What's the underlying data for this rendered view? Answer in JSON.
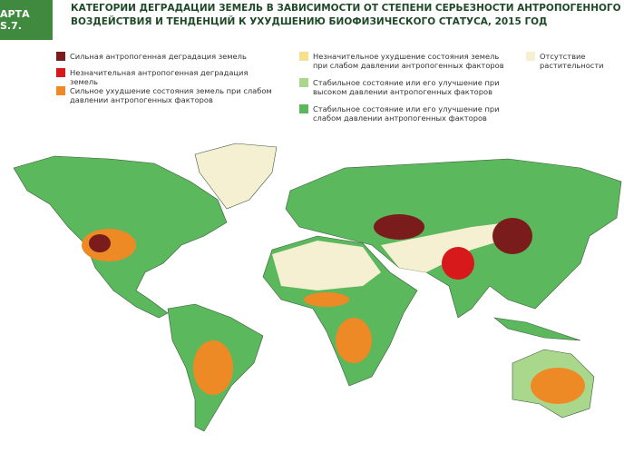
{
  "header": {
    "label": "АРТА S.7.",
    "title_lines": [
      "КАТЕГОРИИ ДЕГРАДАЦИИ ЗЕМЕЛЬ В ЗАВИСИМОСТИ ОТ СТЕПЕНИ СЕРЬЕЗНОСТИ АНТРОПОГЕННОГО",
      "ВОЗДЕЙСТВИЯ И ТЕНДЕНЦИЙ К УХУДШЕНИЮ БИОФИЗИЧЕСКОГО СТАТУСА, 2015 ГОД"
    ]
  },
  "legend": [
    {
      "label": "Сильная антропогенная деградация земель",
      "color": "#7a1c1c"
    },
    {
      "label": "Незначительная антропогенная деградация земель",
      "color": "#d7191c"
    },
    {
      "label": "Сильное ухудшение состояния земель при слабом давлении антропогенных факторов",
      "color": "#ee8a25"
    },
    {
      "label": "Незначительное ухудшение состояния земель при слабом давлении антропогенных факторов",
      "color": "#f6e08e"
    },
    {
      "label": "Стабильное состояние или его улучшение при высоком давлении антропогенных факторов",
      "color": "#a9d88c"
    },
    {
      "label": "Стабильное состояние или его улучшение при слабом давлении антропогенных факторов",
      "color": "#5cb85c"
    },
    {
      "label": "Отсутствие растительности",
      "color": "#f6f0d2"
    }
  ]
}
